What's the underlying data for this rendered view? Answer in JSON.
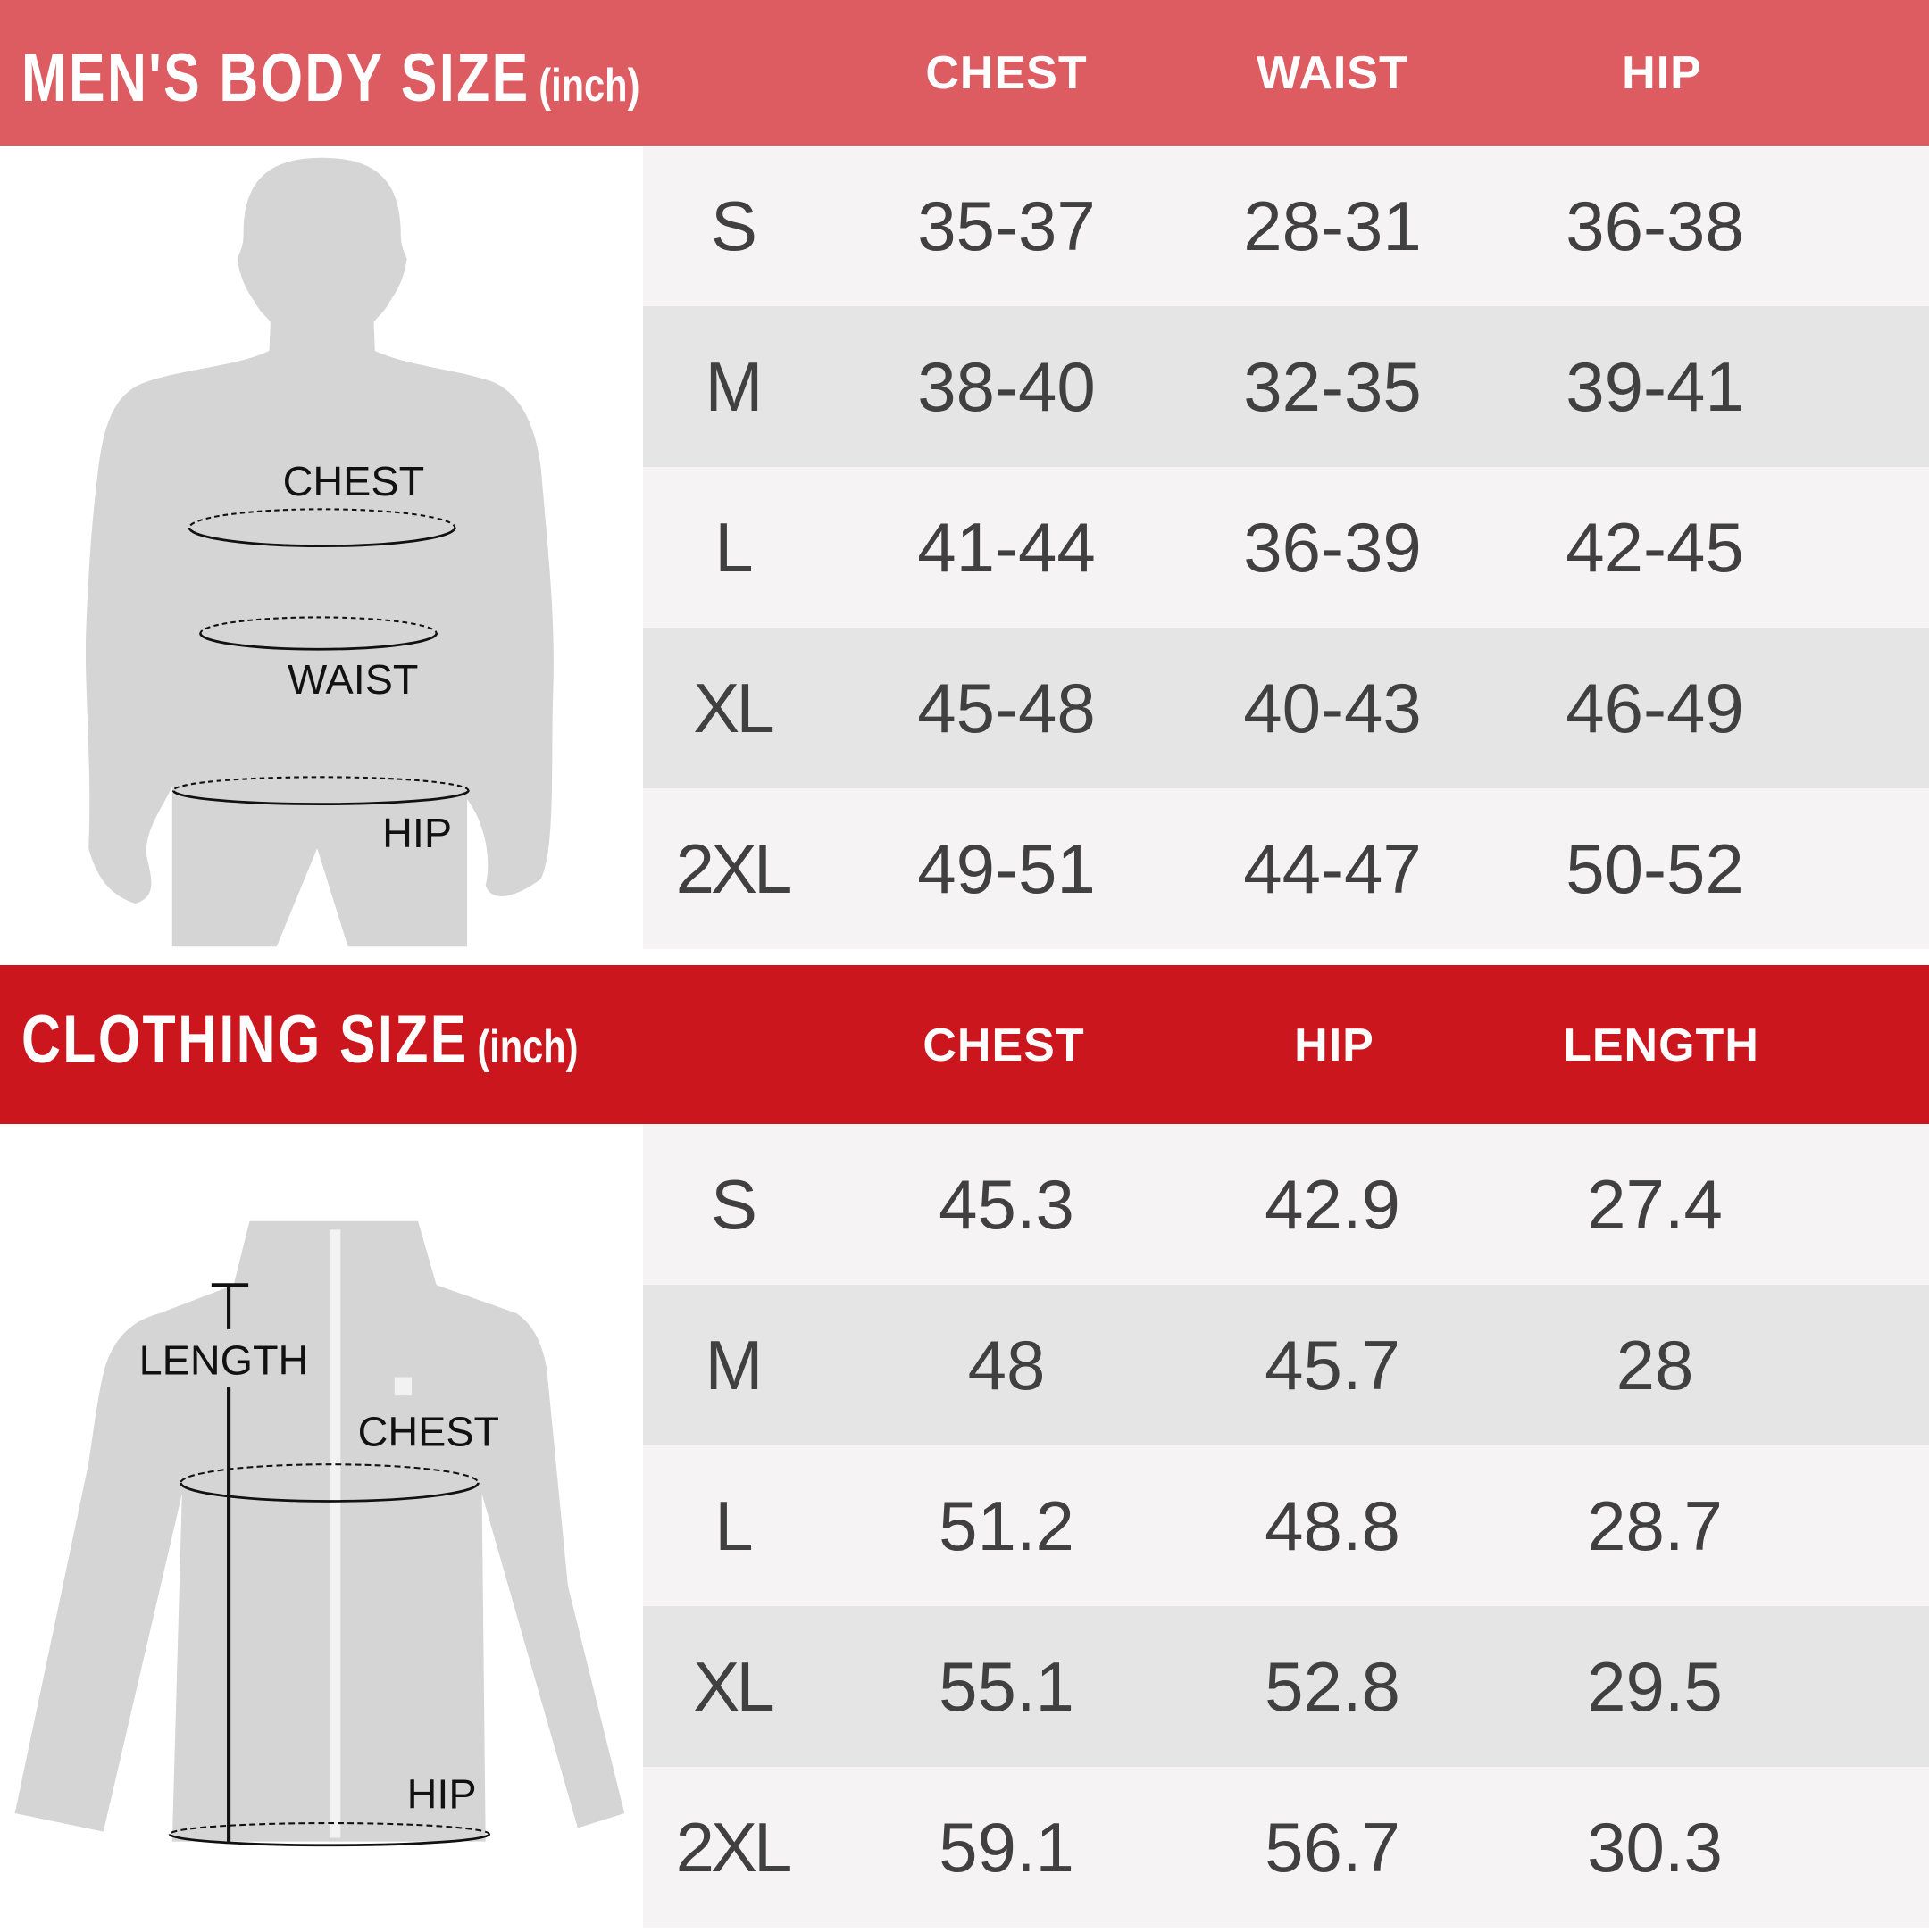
{
  "body_chart": {
    "title": "MEN'S BODY SIZE",
    "unit": "(inch)",
    "columns": [
      "CHEST",
      "WAIST",
      "HIP"
    ],
    "figure_labels": {
      "chest": "CHEST",
      "waist": "WAIST",
      "hip": "HIP"
    },
    "rows": [
      {
        "size": "S",
        "values": [
          "35-37",
          "28-31",
          "36-38"
        ]
      },
      {
        "size": "M",
        "values": [
          "38-40",
          "32-35",
          "39-41"
        ]
      },
      {
        "size": "L",
        "values": [
          "41-44",
          "36-39",
          "42-45"
        ]
      },
      {
        "size": "XL",
        "values": [
          "45-48",
          "40-43",
          "46-49"
        ]
      },
      {
        "size": "2XL",
        "values": [
          "49-51",
          "44-47",
          "50-52"
        ]
      }
    ]
  },
  "clothing_chart": {
    "title": "CLOTHING SIZE",
    "unit": "(inch)",
    "columns": [
      "CHEST",
      "HIP",
      "LENGTH"
    ],
    "figure_labels": {
      "length": "LENGTH",
      "chest": "CHEST",
      "hip": "HIP"
    },
    "rows": [
      {
        "size": "S",
        "values": [
          "45.3",
          "42.9",
          "27.4"
        ]
      },
      {
        "size": "M",
        "values": [
          "48",
          "45.7",
          "28"
        ]
      },
      {
        "size": "L",
        "values": [
          "51.2",
          "48.8",
          "28.7"
        ]
      },
      {
        "size": "XL",
        "values": [
          "55.1",
          "52.8",
          "29.5"
        ]
      },
      {
        "size": "2XL",
        "values": [
          "59.1",
          "56.7",
          "30.3"
        ]
      }
    ]
  },
  "colors": {
    "body_header": "#dd5c61",
    "clothing_header": "#cc161e",
    "row_light": "#f5f3f4",
    "row_dark": "#e5e5e5",
    "silhouette": "#d6d5d6"
  }
}
